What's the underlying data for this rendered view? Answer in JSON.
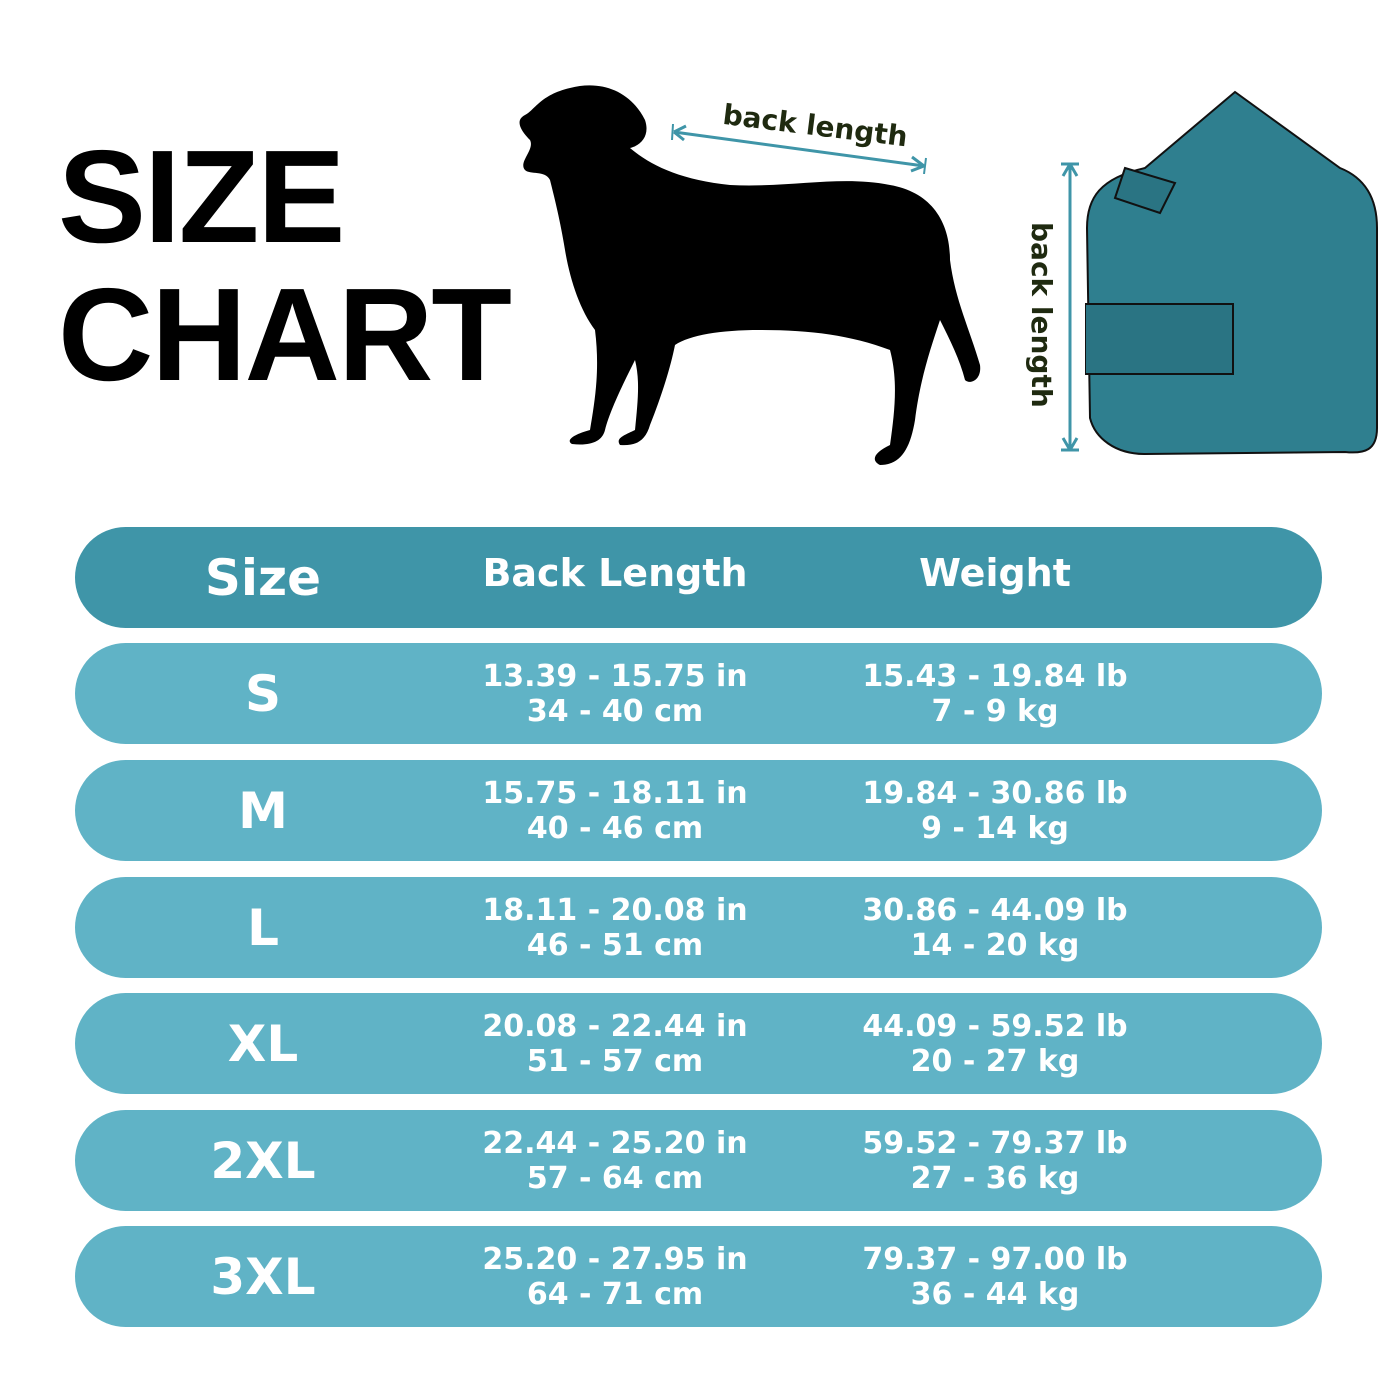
{
  "title": {
    "line1": "SIZE",
    "line2": "CHART"
  },
  "illustration": {
    "dog_label": "back length",
    "coat_label": "back length",
    "arrow_color": "#3f95a8",
    "coat_color": "#2f7f8f"
  },
  "colors": {
    "header": "#3f95a8",
    "row": "#60b3c6",
    "text": "#ffffff"
  },
  "table": {
    "headers": [
      "Size",
      "Back Length",
      "Weight"
    ],
    "rows": [
      {
        "size": "S",
        "back_in": "13.39 - 15.75 in",
        "back_cm": "34 - 40 cm",
        "weight_lb": "15.43 - 19.84 lb",
        "weight_kg": "7 - 9 kg"
      },
      {
        "size": "M",
        "back_in": "15.75 - 18.11 in",
        "back_cm": "40 - 46 cm",
        "weight_lb": "19.84 - 30.86 lb",
        "weight_kg": "9 - 14 kg"
      },
      {
        "size": "L",
        "back_in": "18.11 - 20.08 in",
        "back_cm": "46 - 51 cm",
        "weight_lb": "30.86 - 44.09 lb",
        "weight_kg": "14 - 20 kg"
      },
      {
        "size": "XL",
        "back_in": "20.08 - 22.44 in",
        "back_cm": "51 - 57 cm",
        "weight_lb": "44.09 - 59.52 lb",
        "weight_kg": "20 - 27 kg"
      },
      {
        "size": "2XL",
        "back_in": "22.44 - 25.20 in",
        "back_cm": "57 - 64 cm",
        "weight_lb": "59.52 - 79.37 lb",
        "weight_kg": "27 - 36 kg"
      },
      {
        "size": "3XL",
        "back_in": "25.20 - 27.95 in",
        "back_cm": "64 - 71 cm",
        "weight_lb": "79.37 - 97.00 lb",
        "weight_kg": "36 - 44 kg"
      }
    ]
  }
}
